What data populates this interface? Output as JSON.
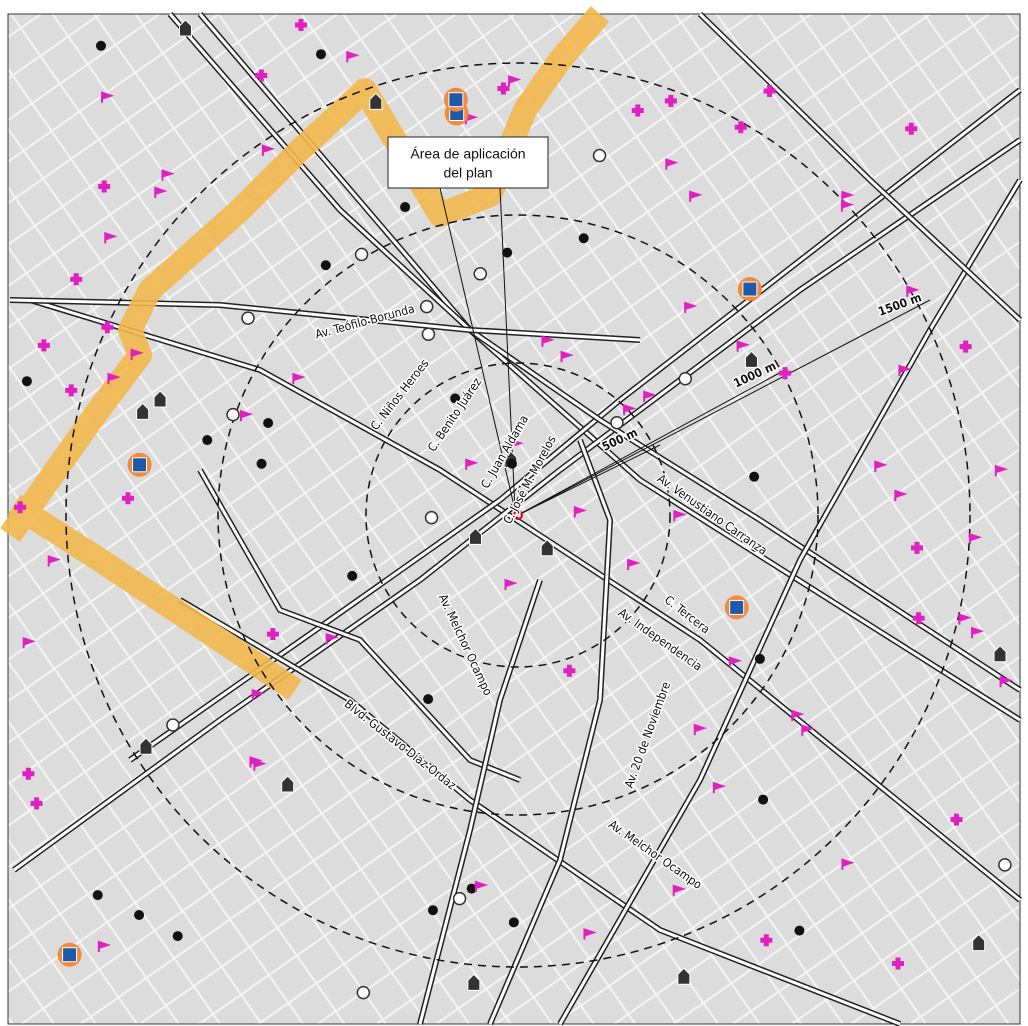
{
  "map": {
    "callout": {
      "lines": [
        "Área de aplicación",
        "del plan"
      ]
    },
    "rings": [
      {
        "label": "500 m"
      },
      {
        "label": "1000 m"
      },
      {
        "label": "1500 m"
      }
    ],
    "streets": [
      {
        "label": "Av. Teófilo Borunda"
      },
      {
        "label": "C. Niños Heroes"
      },
      {
        "label": "C. Benito Juárez"
      },
      {
        "label": "C. Juan Aldama"
      },
      {
        "label": "C. José M. Morelos"
      },
      {
        "label": "Av. Venustiano Carranza"
      },
      {
        "label": "C. Tercera"
      },
      {
        "label": "Av. Independencia"
      },
      {
        "label": "Av. Melchor Ocampo"
      },
      {
        "label": "Av. 20 de Noviembre"
      },
      {
        "label": "Blvd. Gustavo Díaz Ordaz"
      },
      {
        "label": "Av. Melchor Ocampo"
      }
    ]
  }
}
